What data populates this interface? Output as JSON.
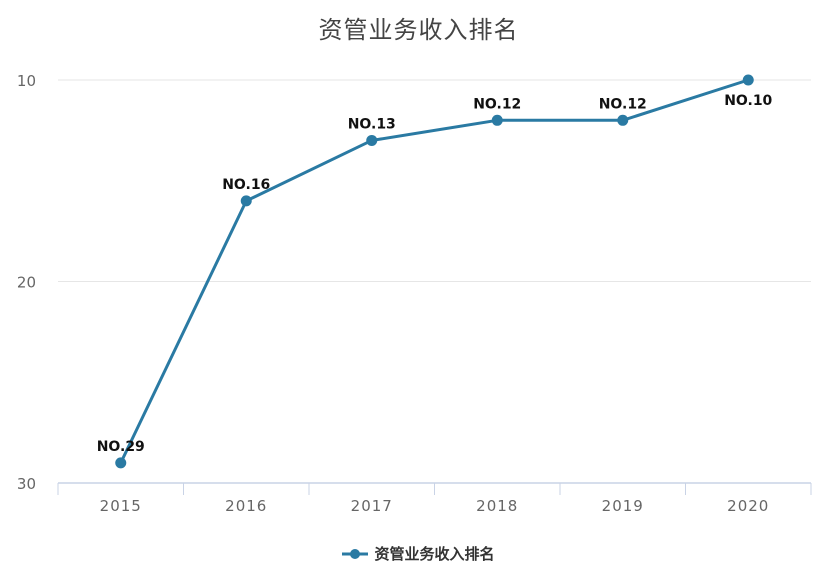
{
  "chart_data": {
    "type": "line",
    "title": "资管业务收入排名",
    "xlabel": "",
    "ylabel": "",
    "categories": [
      "2015",
      "2016",
      "2017",
      "2018",
      "2019",
      "2020"
    ],
    "series": [
      {
        "name": "资管业务收入排名",
        "values": [
          29,
          16,
          13,
          12,
          12,
          10
        ],
        "labels": [
          "NO.29",
          "NO.16",
          "NO.13",
          "NO.12",
          "NO.12",
          "NO.10"
        ],
        "color": "#2A7AA3"
      }
    ],
    "yaxis": {
      "ticks": [
        "10",
        "20",
        "30"
      ],
      "range": [
        10,
        30
      ],
      "inverted": true
    },
    "grid": true,
    "legend_position": "bottom"
  },
  "title": "资管业务收入排名",
  "legend": {
    "label": "资管业务收入排名",
    "color": "#2A7AA3"
  },
  "colors": {
    "line": "#2A7AA3",
    "axis": "#C9D3E6",
    "grid": "#E6E6E6"
  }
}
